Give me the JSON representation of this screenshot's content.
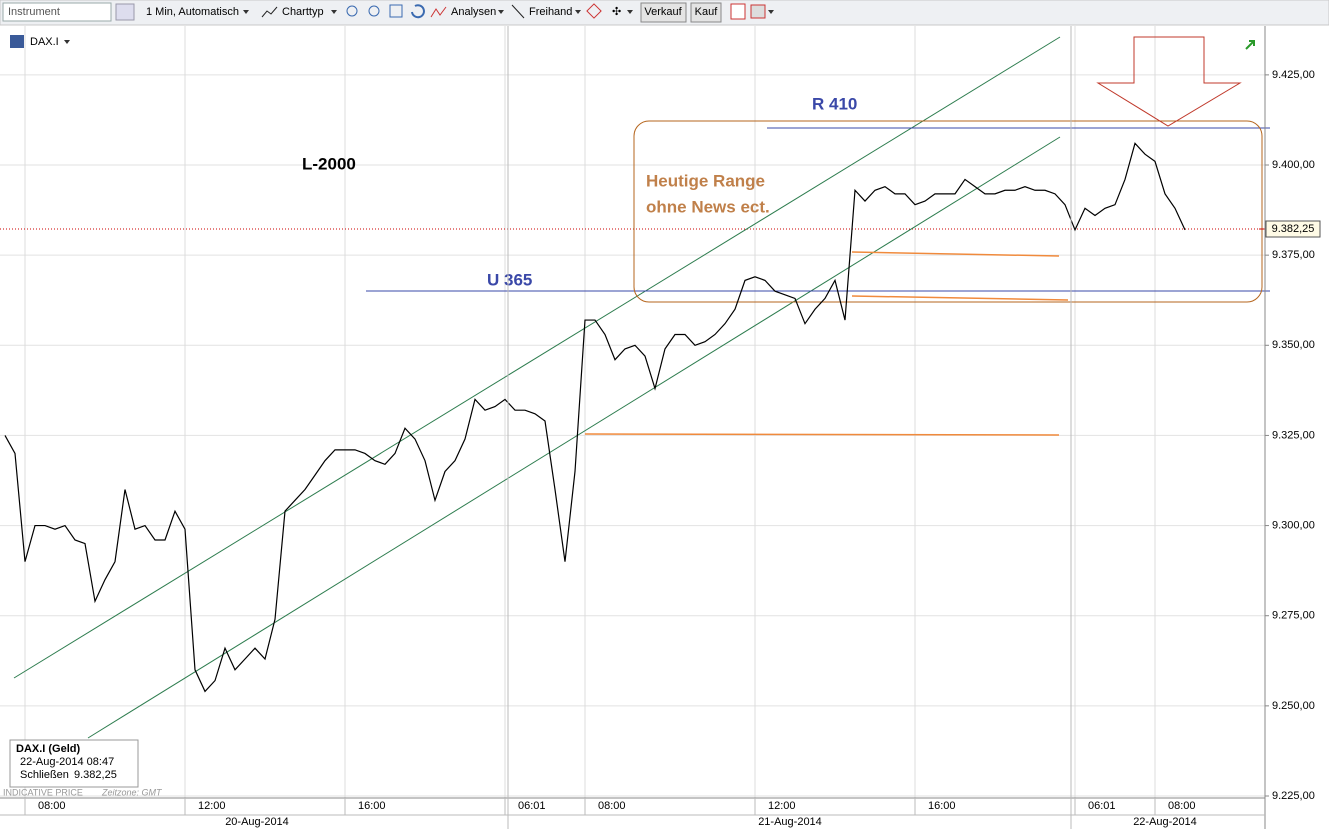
{
  "toolbar": {
    "instrument": "Instrument",
    "interval": "1 Min, Automatisch",
    "chart_type": "Charttyp",
    "analyses": "Analysen",
    "freehand": "Freihand",
    "sell": "Verkauf",
    "buy": "Kauf"
  },
  "symbol": "DAX.I",
  "info_box": {
    "title": "DAX.I (Geld)",
    "timestamp": "22-Aug-2014 08:47",
    "close_label": "Schließen"
  },
  "footer": {
    "price_type": "INDICATIVE PRICE",
    "timezone": "Zeitzone: GMT"
  },
  "annotations": {
    "lot": "L-2000",
    "range_line1": "Heutige Range",
    "range_line2": "ohne News ect.",
    "resistance": "R 410",
    "support": "U 365"
  },
  "chart_data": {
    "type": "line",
    "color": "#000000",
    "grid": true,
    "dates": [
      "20-Aug-2014",
      "21-Aug-2014",
      "22-Aug-2014"
    ],
    "categories": [
      null,
      null,
      "08:00",
      null,
      null,
      null,
      null,
      null,
      null,
      null,
      null,
      null,
      null,
      null,
      null,
      null,
      null,
      null,
      "12:00",
      null,
      null,
      null,
      null,
      null,
      null,
      null,
      null,
      null,
      null,
      null,
      null,
      null,
      null,
      null,
      "16:00",
      null,
      null,
      null,
      null,
      null,
      null,
      null,
      null,
      null,
      null,
      null,
      null,
      null,
      null,
      null,
      "06:01",
      null,
      null,
      null,
      null,
      null,
      null,
      null,
      "08:00",
      null,
      null,
      null,
      null,
      null,
      null,
      null,
      null,
      null,
      null,
      null,
      null,
      null,
      null,
      null,
      null,
      "12:00",
      null,
      null,
      null,
      null,
      null,
      null,
      null,
      null,
      null,
      null,
      null,
      null,
      null,
      null,
      null,
      "16:00",
      null,
      null,
      null,
      null,
      null,
      null,
      null,
      null,
      null,
      null,
      null,
      null,
      null,
      null,
      null,
      "06:01",
      null,
      null,
      null,
      null,
      null,
      null,
      null,
      "08:00",
      null,
      null,
      null
    ],
    "values": [
      9325,
      9320,
      9290,
      9300,
      9300,
      9299,
      9300,
      9296,
      9295,
      9279,
      9285,
      9290,
      9310,
      9299,
      9300,
      9296,
      9296,
      9304,
      9299,
      9260,
      9254,
      9257,
      9266,
      9260,
      9263,
      9266,
      9263,
      9274,
      9304,
      9307,
      9310,
      9314,
      9318,
      9321,
      9321,
      9321,
      9320,
      9318,
      9317,
      9320,
      9327,
      9324,
      9318,
      9307,
      9315,
      9318,
      9324,
      9335,
      9332,
      9333,
      9335,
      9332,
      9332,
      9331,
      9329,
      9310,
      9290,
      9315,
      9357,
      9357,
      9353,
      9346,
      9349,
      9350,
      9347,
      9338,
      9349,
      9353,
      9353,
      9350,
      9351,
      9353,
      9356,
      9360,
      9368,
      9369,
      9368,
      9365,
      9364,
      9363,
      9356,
      9360,
      9363,
      9368,
      9357,
      9393,
      9390,
      9393,
      9394,
      9392,
      9392,
      9389,
      9390,
      9392,
      9392,
      9392,
      9396,
      9394,
      9392,
      9392,
      9393,
      9393,
      9394,
      9393,
      9393,
      9392,
      9389,
      9382,
      9388,
      9386,
      9388,
      9389,
      9396,
      9406,
      9403,
      9401,
      9392,
      9388,
      9382
    ],
    "ylim": [
      9225,
      9438
    ],
    "yticks": [
      {
        "value": 9225,
        "label": "9.225,00"
      },
      {
        "value": 9250,
        "label": "9.250,00"
      },
      {
        "value": 9275,
        "label": "9.275,00"
      },
      {
        "value": 9300,
        "label": "9.300,00"
      },
      {
        "value": 9325,
        "label": "9.325,00"
      },
      {
        "value": 9350,
        "label": "9.350,00"
      },
      {
        "value": 9375,
        "label": "9.375,00"
      },
      {
        "value": 9400,
        "label": "9.400,00"
      },
      {
        "value": 9425,
        "label": "9.425,00"
      }
    ],
    "last_price": {
      "value": 9382.25,
      "label": "9.382,25"
    }
  }
}
